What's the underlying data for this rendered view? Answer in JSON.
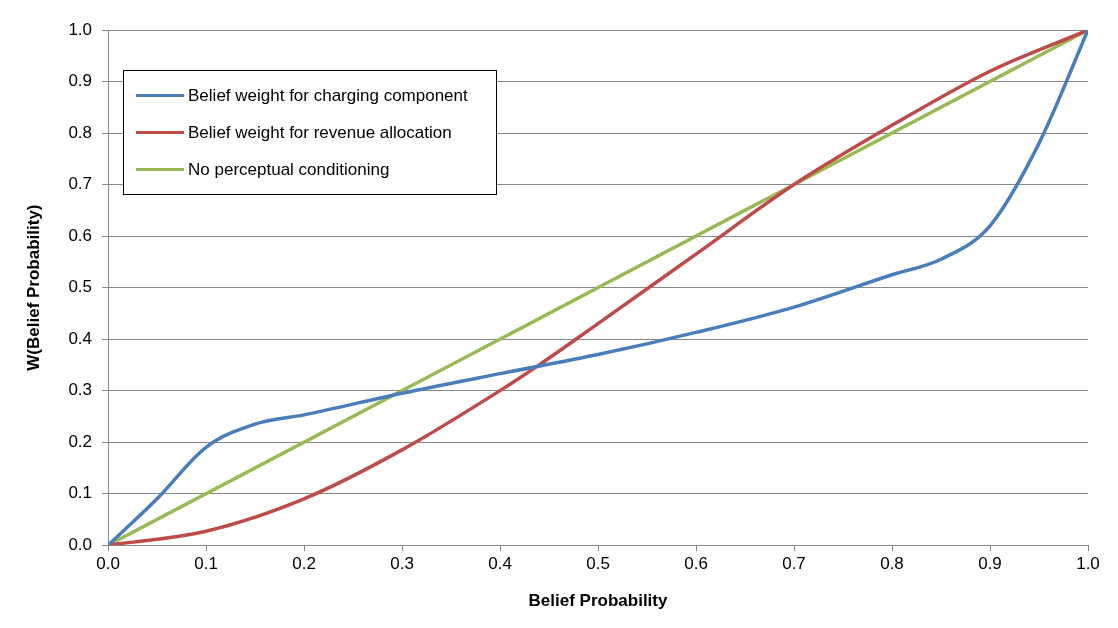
{
  "chart_data": {
    "type": "line",
    "xlabel": "Belief Probability",
    "ylabel": "W(Belief Probability)",
    "xlim": [
      0,
      1
    ],
    "xticks": [
      {
        "value": 0,
        "label": "0.0"
      },
      {
        "value": 0.1,
        "label": "0.1"
      },
      {
        "value": 0.2,
        "label": "0.2"
      },
      {
        "value": 0.3,
        "label": "0.3"
      },
      {
        "value": 0.4,
        "label": "0.4"
      },
      {
        "value": 0.5,
        "label": "0.5"
      },
      {
        "value": 0.6,
        "label": "0.6"
      },
      {
        "value": 0.7,
        "label": "0.7"
      },
      {
        "value": 0.8,
        "label": "0.8"
      },
      {
        "value": 0.9,
        "label": "0.9"
      },
      {
        "value": 1,
        "label": "1.0"
      }
    ],
    "ylim": [
      0,
      1
    ],
    "yticks": [
      {
        "value": 0,
        "label": "0.0"
      },
      {
        "value": 0.1,
        "label": "0.1"
      },
      {
        "value": 0.2,
        "label": "0.2"
      },
      {
        "value": 0.3,
        "label": "0.3"
      },
      {
        "value": 0.4,
        "label": "0.4"
      },
      {
        "value": 0.5,
        "label": "0.5"
      },
      {
        "value": 0.6,
        "label": "0.6"
      },
      {
        "value": 0.7,
        "label": "0.7"
      },
      {
        "value": 0.8,
        "label": "0.8"
      },
      {
        "value": 0.9,
        "label": "0.9"
      },
      {
        "value": 1,
        "label": "1.0"
      }
    ],
    "grid": "y",
    "legend": "top left",
    "marker": "none",
    "line_style": "solid",
    "series": [
      {
        "name": "Belief weight for charging component",
        "color": "#4a7ebb",
        "x": [
          0,
          0.05,
          0.1,
          0.15,
          0.2,
          0.3,
          0.4,
          0.5,
          0.6,
          0.7,
          0.8,
          0.85,
          0.9,
          0.95,
          1
        ],
        "values": [
          0,
          0.09,
          0.19,
          0.235,
          0.253,
          0.295,
          0.333,
          0.37,
          0.413,
          0.462,
          0.525,
          0.555,
          0.62,
          0.78,
          1
        ]
      },
      {
        "name": "Belief weight for revenue allocation",
        "color": "#be4b48",
        "x": [
          0,
          0.1,
          0.2,
          0.3,
          0.4,
          0.44,
          0.5,
          0.6,
          0.7,
          0.8,
          0.9,
          1
        ],
        "values": [
          0,
          0.027,
          0.09,
          0.185,
          0.3,
          0.35,
          0.43,
          0.565,
          0.7,
          0.815,
          0.92,
          1
        ]
      },
      {
        "name": "No perceptual conditioning",
        "color": "#98b954",
        "x": [
          0,
          1
        ],
        "values": [
          0,
          1
        ]
      }
    ]
  }
}
